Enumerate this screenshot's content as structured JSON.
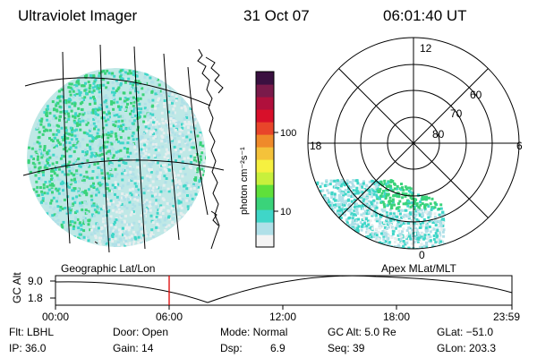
{
  "header": {
    "instrument": "Ultraviolet Imager",
    "date": "31 Oct 07",
    "time": "06:01:40 UT"
  },
  "colorbar": {
    "unit_label": "photon cm⁻²s⁻¹",
    "ticks": [
      "100",
      "10"
    ],
    "scale": "log",
    "colors": [
      "#f4f4f4",
      "#b0e0e8",
      "#3fd6c8",
      "#3ad37a",
      "#5fe03a",
      "#c8f03c",
      "#f6f040",
      "#f4c23a",
      "#ef8a2a",
      "#e8452a",
      "#d8102a",
      "#b0103c",
      "#7a1a4a",
      "#3a1040"
    ]
  },
  "left_panel": {
    "label": "Geographic Lat/Lon"
  },
  "polar_plot": {
    "label": "Apex MLat/MLT",
    "lat_labels": [
      "80",
      "70",
      "60"
    ],
    "mlt_labels": {
      "top": "12",
      "right": "6",
      "bottom": "0",
      "left": "18"
    }
  },
  "timeline": {
    "y_label": "GC Alt",
    "y_ticks": [
      "9.0",
      "1.8"
    ],
    "x_ticks": [
      "00:00",
      "06:00",
      "12:00",
      "18:00",
      "23:59"
    ],
    "current_marker": "06:01",
    "marker_color": "#dd0000"
  },
  "status": {
    "filter": "Flt: LBHL",
    "ip": "IP: 36.0",
    "door": "Door: Open",
    "gain": "Gain: 14",
    "mode": "Mode: Normal",
    "dsp_label": "Dsp:",
    "dsp_value": "6.9",
    "gc_alt": "GC Alt: 5.0 Re",
    "seq": "Seq: 39",
    "glat": "GLat: −51.0",
    "glon": "GLon: 203.3"
  }
}
